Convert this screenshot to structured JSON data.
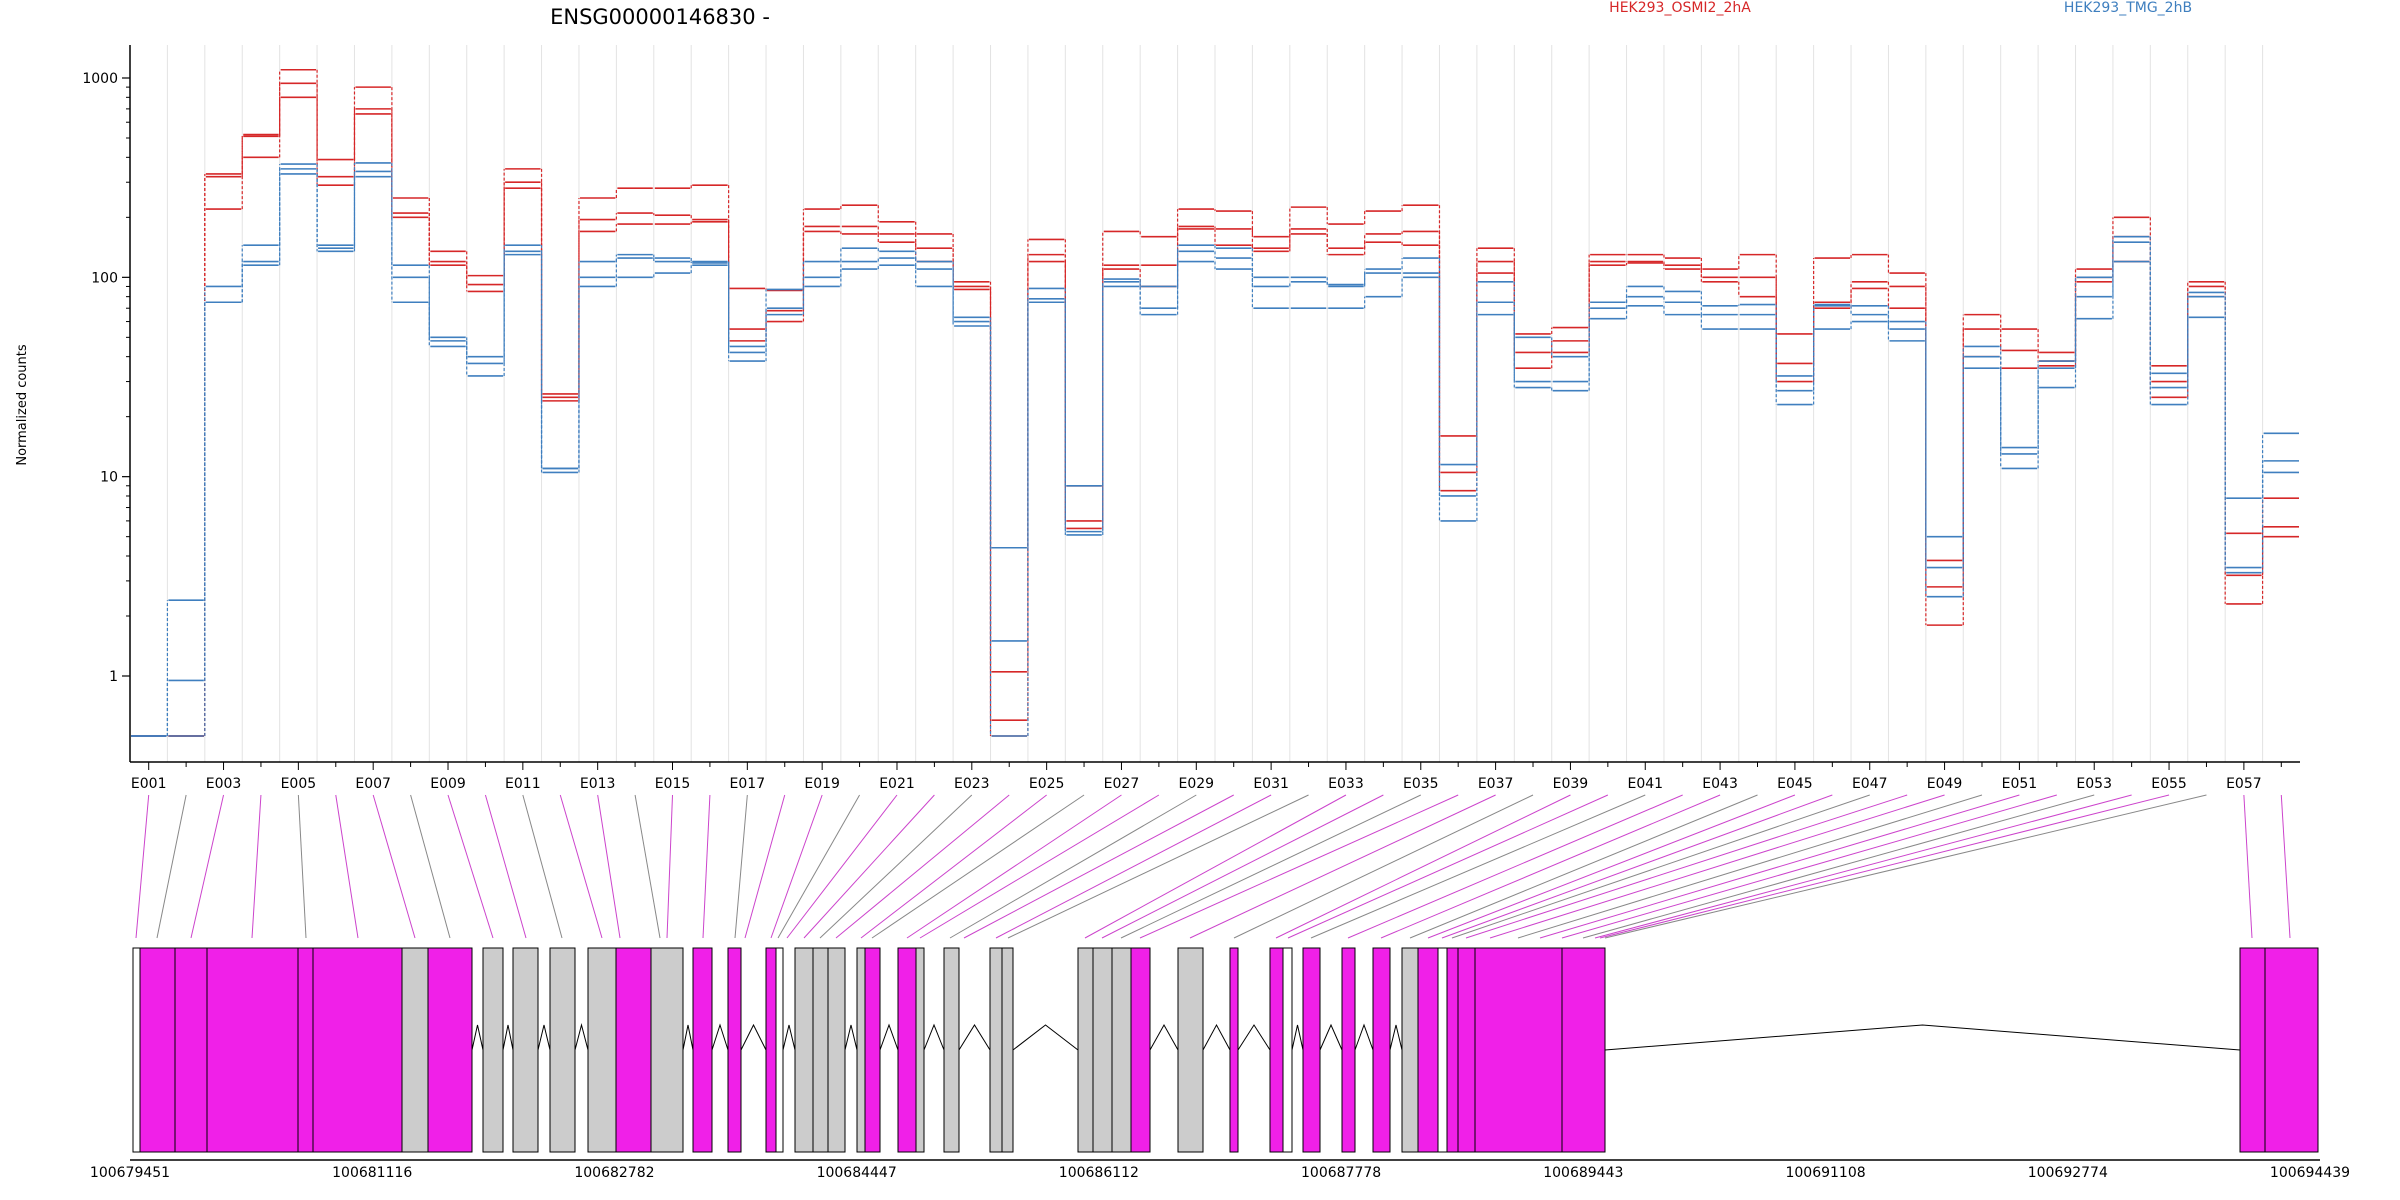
{
  "chart_data": {
    "type": "line",
    "title": "ENSG00000146830 -",
    "ylabel": "Normalized counts",
    "yscale": "log",
    "ylim": [
      0.5,
      1300
    ],
    "y_ticks": [
      1,
      10,
      100,
      1000
    ],
    "y_tick_labels": [
      "1",
      "10",
      "100",
      "1000"
    ],
    "legend": [
      {
        "label": "HEK293_OSMI2_2hA",
        "color": "#d62728"
      },
      {
        "label": "HEK293_TMG_2hB",
        "color": "#3f7fbf"
      }
    ],
    "x_tick_labels": [
      "E001",
      "E003",
      "E005",
      "E007",
      "E009",
      "E011",
      "E013",
      "E015",
      "E017",
      "E019",
      "E021",
      "E023",
      "E025",
      "E027",
      "E029",
      "E031",
      "E033",
      "E035",
      "E037",
      "E039",
      "E041",
      "E043",
      "E045",
      "E047",
      "E049",
      "E051",
      "E053",
      "E055",
      "E057"
    ],
    "series": [
      {
        "name": "HEK293_OSMI2_2hA",
        "color": "#d62728",
        "values": [
          0.5,
          0.5,
          330,
          520,
          1100,
          390,
          900,
          250,
          135,
          102,
          350,
          26,
          250,
          280,
          280,
          290,
          88,
          86,
          220,
          230,
          190,
          165,
          95,
          1.05,
          155,
          9,
          170,
          160,
          220,
          215,
          160,
          225,
          185,
          215,
          230,
          16,
          140,
          52,
          56,
          130,
          130,
          125,
          110,
          130,
          52,
          125,
          130,
          105,
          3.8,
          65,
          55,
          42,
          110,
          200,
          36,
          95,
          5.2,
          7.8
        ]
      },
      {
        "name": "HEK293_OSMI2_2hA",
        "color": "#d62728",
        "values": [
          0.5,
          0.5,
          320,
          510,
          940,
          320,
          700,
          210,
          120,
          92,
          300,
          25,
          195,
          210,
          205,
          195,
          55,
          68,
          180,
          180,
          165,
          140,
          90,
          0.6,
          130,
          6,
          115,
          115,
          180,
          175,
          140,
          175,
          140,
          165,
          170,
          10.5,
          120,
          42,
          48,
          120,
          120,
          115,
          100,
          100,
          37,
          75,
          95,
          90,
          2.8,
          55,
          43,
          38,
          100,
          160,
          30,
          90,
          3.2,
          5.6
        ]
      },
      {
        "name": "HEK293_OSMI2_2hA",
        "color": "#d62728",
        "values": [
          0.5,
          0.5,
          220,
          400,
          800,
          290,
          660,
          200,
          115,
          85,
          280,
          24,
          170,
          185,
          185,
          190,
          48,
          60,
          170,
          165,
          150,
          120,
          87,
          0.5,
          120,
          5.5,
          110,
          90,
          175,
          145,
          135,
          165,
          130,
          150,
          145,
          8.5,
          105,
          35,
          42,
          115,
          118,
          110,
          95,
          80,
          30,
          70,
          88,
          70,
          1.8,
          40,
          35,
          36,
          95,
          120,
          25,
          80,
          2.3,
          5
        ]
      },
      {
        "name": "HEK293_TMG_2hB",
        "color": "#3f7fbf",
        "values": [
          0.5,
          2.4,
          90,
          145,
          370,
          145,
          375,
          115,
          50,
          40,
          145,
          11,
          120,
          130,
          125,
          120,
          45,
          87,
          120,
          140,
          135,
          120,
          63,
          4.4,
          88,
          9,
          98,
          90,
          145,
          140,
          100,
          100,
          92,
          110,
          125,
          11.5,
          95,
          50,
          40,
          75,
          90,
          85,
          72,
          73,
          32,
          73,
          72,
          60,
          5,
          45,
          14,
          38,
          100,
          160,
          33,
          84,
          7.8,
          16.5
        ]
      },
      {
        "name": "HEK293_TMG_2hB",
        "color": "#3f7fbf",
        "values": [
          0.5,
          0.95,
          75,
          120,
          350,
          140,
          340,
          100,
          48,
          37,
          135,
          11,
          100,
          125,
          120,
          118,
          42,
          70,
          100,
          120,
          125,
          110,
          60,
          1.5,
          78,
          5.3,
          95,
          70,
          135,
          125,
          90,
          95,
          90,
          105,
          105,
          8,
          75,
          30,
          30,
          70,
          80,
          75,
          65,
          65,
          27,
          72,
          65,
          55,
          3.5,
          40,
          13,
          35,
          80,
          150,
          28,
          80,
          3.5,
          12
        ]
      },
      {
        "name": "HEK293_TMG_2hB",
        "color": "#3f7fbf",
        "values": [
          0.5,
          0.5,
          75,
          115,
          330,
          135,
          320,
          75,
          45,
          32,
          130,
          10.5,
          90,
          100,
          105,
          115,
          38,
          65,
          90,
          110,
          115,
          90,
          57,
          0.5,
          75,
          5.1,
          90,
          65,
          120,
          110,
          70,
          70,
          70,
          80,
          100,
          6,
          65,
          28,
          27,
          62,
          72,
          65,
          55,
          55,
          23,
          55,
          60,
          48,
          2.5,
          35,
          11,
          28,
          62,
          120,
          23,
          63,
          3.3,
          10.5
        ]
      }
    ],
    "gene_axis_labels": [
      "100679451",
      "100681116",
      "100682782",
      "100684447",
      "100686112",
      "100687778",
      "100689443",
      "100691108",
      "100692774",
      "100694439"
    ]
  }
}
